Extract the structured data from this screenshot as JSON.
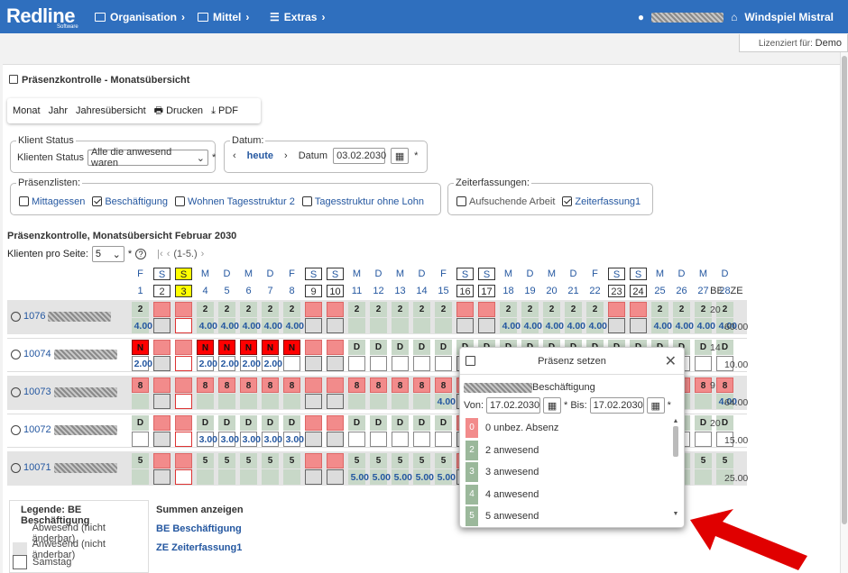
{
  "brand": {
    "name": "Redline",
    "sub": "Software"
  },
  "nav": [
    {
      "label": "Organisation"
    },
    {
      "label": "Mittel"
    },
    {
      "label": "Extras"
    }
  ],
  "user": {
    "location": "Windspiel Mistral"
  },
  "license": {
    "label": "Lizenziert für:",
    "value": "Demo"
  },
  "page_title": "Präsenzkontrolle - Monatsübersicht",
  "toolbar": {
    "monat": "Monat",
    "jahr": "Jahr",
    "jahresuebersicht": "Jahresübersicht",
    "drucken": "Drucken",
    "pdf": "PDF"
  },
  "klient_status": {
    "legend": "Klient Status",
    "label": "Klienten Status",
    "value": "Alle die anwesend waren",
    "required": "*"
  },
  "datum": {
    "legend": "Datum:",
    "heute": "heute",
    "label": "Datum",
    "value": "03.02.2030",
    "required": "*"
  },
  "praesenzlisten": {
    "legend": "Präsenzlisten:",
    "items": [
      {
        "label": "Mittagessen",
        "checked": false
      },
      {
        "label": "Beschäftigung",
        "checked": true
      },
      {
        "label": "Wohnen Tagesstruktur 2",
        "checked": false
      },
      {
        "label": "Tagesstruktur ohne Lohn",
        "checked": false
      }
    ]
  },
  "zeiterfassungen": {
    "legend": "Zeiterfassungen:",
    "items": [
      {
        "label": "Aufsuchende Arbeit",
        "checked": false
      },
      {
        "label": "Zeiterfassung1",
        "checked": true
      }
    ]
  },
  "subtitle": "Präsenzkontrolle, Monatsübersicht Februar 2030",
  "paging": {
    "label": "Klienten pro Seite:",
    "value": "5",
    "required": "*",
    "range": "(1-5.)"
  },
  "days": {
    "weekday": [
      "F",
      "S",
      "S",
      "M",
      "D",
      "M",
      "D",
      "F",
      "S",
      "S",
      "M",
      "D",
      "M",
      "D",
      "F",
      "S",
      "S",
      "M",
      "D",
      "M",
      "D",
      "F",
      "S",
      "S",
      "M",
      "D",
      "M",
      "D"
    ],
    "num": [
      "1",
      "2",
      "3",
      "4",
      "5",
      "6",
      "7",
      "8",
      "9",
      "10",
      "11",
      "12",
      "13",
      "14",
      "15",
      "16",
      "17",
      "18",
      "19",
      "20",
      "21",
      "22",
      "23",
      "24",
      "25",
      "26",
      "27",
      "28"
    ]
  },
  "col_be": "BE",
  "col_ze": "ZE",
  "rows": [
    {
      "id": "1076",
      "code": "2",
      "hours": "4.00",
      "be": "20",
      "ze": "60.00"
    },
    {
      "id": "10074",
      "code": "N",
      "hours": "2.00",
      "be": "14",
      "ze": "10.00"
    },
    {
      "id": "10073",
      "code": "8",
      "hours": "4.00",
      "be": "9",
      "ze": "64.00"
    },
    {
      "id": "10072",
      "code": "D",
      "hours": "3.00",
      "be": "20",
      "ze": "15.00"
    },
    {
      "id": "10071",
      "code": "5",
      "hours": "5.00",
      "be": "",
      "ze": "25.00"
    }
  ],
  "legend": {
    "title": "Legende: BE Beschäftigung",
    "items": [
      "Abwesend (nicht änderbar)",
      "Anwesend (nicht änderbar)",
      "Samstag"
    ]
  },
  "summen": {
    "title": "Summen anzeigen",
    "items": [
      "BE Beschäftigung",
      "ZE Zeiterfassung1"
    ]
  },
  "dialog": {
    "title": "Präsenz setzen",
    "subtitle": "Beschäftigung",
    "von_label": "Von:",
    "von": "17.02.2030",
    "bis_label": "Bis:",
    "bis": "17.02.2030",
    "required": "*",
    "options": [
      {
        "key": "0",
        "label": "0 unbez. Absenz",
        "color": "#f28b8b"
      },
      {
        "key": "2",
        "label": "2 anwesend",
        "color": "#9bb89b"
      },
      {
        "key": "3",
        "label": "3 anwesend",
        "color": "#9bb89b"
      },
      {
        "key": "4",
        "label": "4 anwesend",
        "color": "#9bb89b"
      },
      {
        "key": "5",
        "label": "5 anwesend",
        "color": "#9bb89b"
      }
    ]
  },
  "colors": {
    "header": "#2f6fbe",
    "link": "#2457a0",
    "absent": "#f28b8b",
    "present": "#c8d8c8",
    "noshow": "#ff0000",
    "arrow": "#e00000"
  }
}
